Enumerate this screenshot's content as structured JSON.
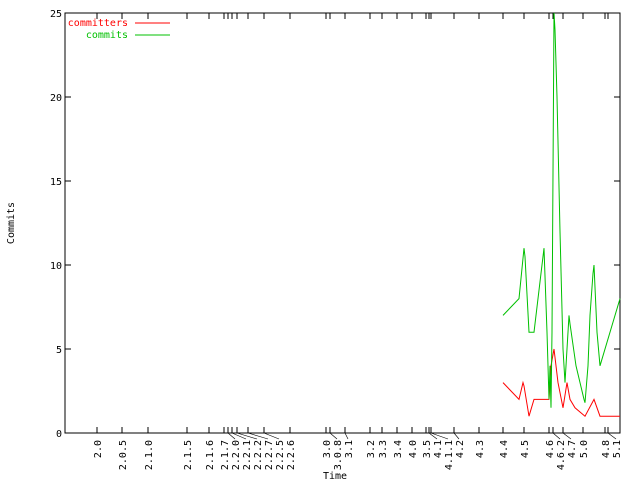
{
  "chart_data": {
    "type": "line",
    "title": "",
    "xlabel": "Time",
    "ylabel": "Commits",
    "ylim": [
      0,
      25
    ],
    "xlim": [
      0,
      555
    ],
    "yticks": [
      0,
      5,
      10,
      15,
      20,
      25
    ],
    "grid": false,
    "legend_position": "top-left",
    "xticks": [
      {
        "x": 32,
        "label": "2.0"
      },
      {
        "x": 57,
        "label": "2.0.5"
      },
      {
        "x": 83,
        "label": "2.1.0"
      },
      {
        "x": 122,
        "label": "2.1.5"
      },
      {
        "x": 144,
        "label": "2.1.6"
      },
      {
        "x": 159,
        "label": "2.1.7"
      },
      {
        "x": 163,
        "label": "2.2.0"
      },
      {
        "x": 167,
        "label": "2.2.1"
      },
      {
        "x": 172,
        "label": "2.2.2"
      },
      {
        "x": 183,
        "label": "2.2.7"
      },
      {
        "x": 199,
        "label": "2.2.5"
      },
      {
        "x": 225,
        "label": "2.2.6"
      },
      {
        "x": 261,
        "label": "3.0"
      },
      {
        "x": 265,
        "label": "3.0.8"
      },
      {
        "x": 280,
        "label": "3.1"
      },
      {
        "x": 305,
        "label": "3.2"
      },
      {
        "x": 317,
        "label": "3.3"
      },
      {
        "x": 332,
        "label": "3.4"
      },
      {
        "x": 347,
        "label": "4.0"
      },
      {
        "x": 361,
        "label": "3.5"
      },
      {
        "x": 364,
        "label": "4.1"
      },
      {
        "x": 366,
        "label": "4.1.1"
      },
      {
        "x": 389,
        "label": "4.2"
      },
      {
        "x": 414,
        "label": "4.3"
      },
      {
        "x": 438,
        "label": "4.4"
      },
      {
        "x": 459,
        "label": "4.5"
      },
      {
        "x": 484,
        "label": "4.6"
      },
      {
        "x": 488,
        "label": "4.6.2"
      },
      {
        "x": 498,
        "label": "4.7"
      },
      {
        "x": 518,
        "label": "5.0"
      },
      {
        "x": 540,
        "label": "4.8"
      },
      {
        "x": 543,
        "label": "5.1"
      }
    ],
    "series": [
      {
        "name": "committers",
        "color": "#ff0000",
        "x": [
          438,
          454,
          458,
          459,
          464,
          469,
          484,
          486,
          489,
          490,
          493,
          498,
          502,
          505,
          510,
          520,
          529,
          535,
          555
        ],
        "y": [
          3,
          2,
          3,
          2.8,
          1,
          2,
          2,
          4,
          5,
          4.5,
          3,
          1.5,
          3,
          2,
          1.5,
          1,
          2,
          1,
          1
        ]
      },
      {
        "name": "commits",
        "color": "#00c000",
        "x": [
          438,
          454,
          459,
          460,
          464,
          469,
          478,
          479,
          482,
          484,
          485,
          486,
          487,
          489,
          490,
          492,
          495,
          498,
          500,
          501,
          504,
          505,
          511,
          519,
          520,
          523,
          525,
          528,
          529,
          532,
          535,
          555
        ],
        "y": [
          7,
          8,
          11,
          10.5,
          6,
          6,
          10.5,
          11,
          6,
          2,
          4,
          1.5,
          6,
          25,
          24,
          20,
          12,
          5,
          3,
          4,
          7,
          6.5,
          4,
          2,
          1.8,
          4,
          7,
          9.5,
          10,
          6,
          4,
          8
        ]
      }
    ]
  }
}
